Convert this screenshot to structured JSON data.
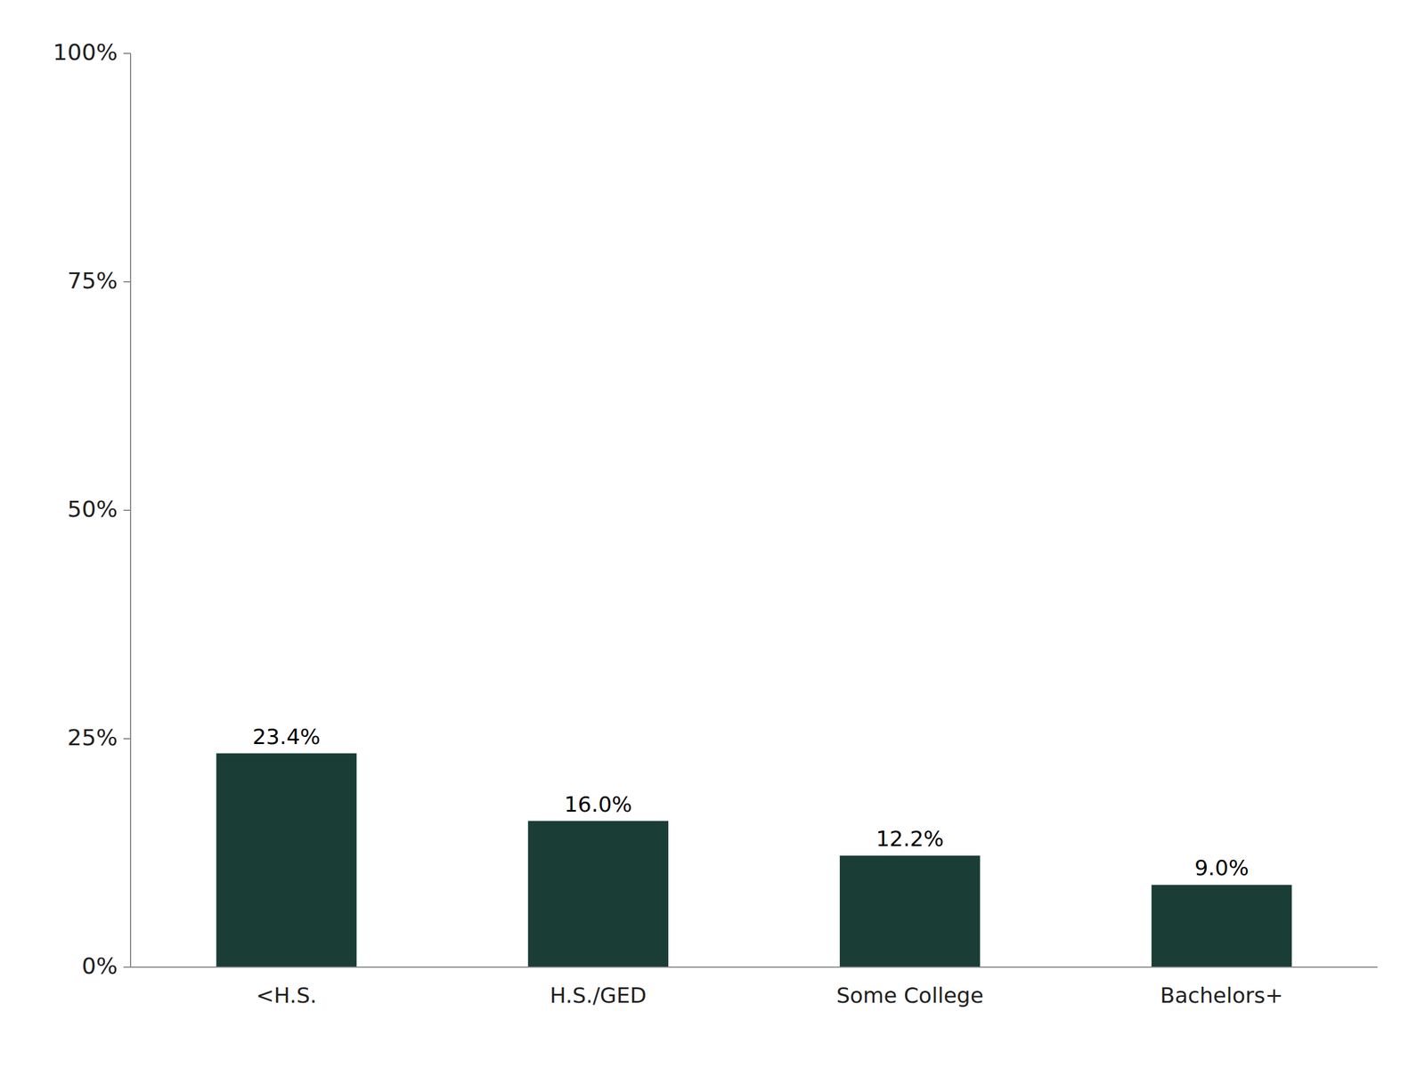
{
  "chart_data": {
    "type": "bar",
    "categories": [
      "<H.S.",
      "H.S./GED",
      "Some College",
      "Bachelors+"
    ],
    "values": [
      23.4,
      16.0,
      12.2,
      9.0
    ],
    "value_labels": [
      "23.4%",
      "16.0%",
      "12.2%",
      "9.0%"
    ],
    "data_labels": true,
    "color": "#1a3d35",
    "ylim": [
      0,
      100
    ],
    "yticks": [
      {
        "value": 0,
        "label": "0%"
      },
      {
        "value": 25,
        "label": "25%"
      },
      {
        "value": 50,
        "label": "50%"
      },
      {
        "value": 75,
        "label": "75%"
      },
      {
        "value": 100,
        "label": "100%"
      }
    ],
    "grid": false
  }
}
